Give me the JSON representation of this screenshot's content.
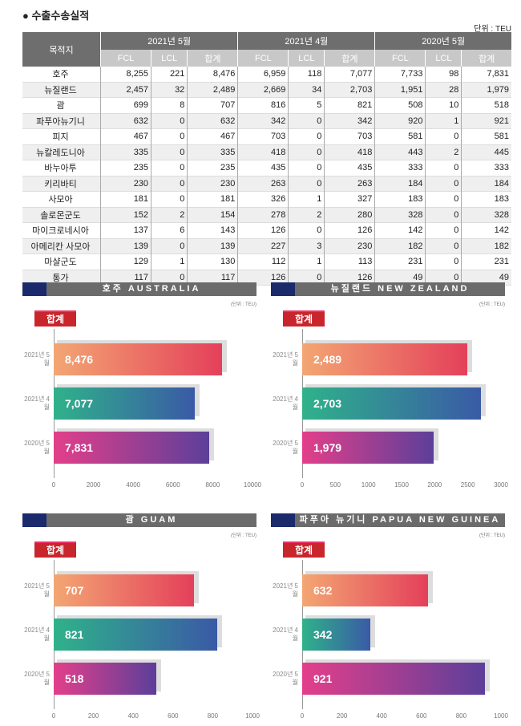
{
  "title": "● 수출수송실적",
  "unit": "단위 : TEU",
  "table": {
    "dest_header": "목적지",
    "periods": [
      "2021년 5월",
      "2021년 4월",
      "2020년 5월"
    ],
    "sub": [
      "FCL",
      "LCL",
      "합계"
    ],
    "rows": [
      [
        "호주",
        "8,255",
        "221",
        "8,476",
        "6,959",
        "118",
        "7,077",
        "7,733",
        "98",
        "7,831"
      ],
      [
        "뉴질랜드",
        "2,457",
        "32",
        "2,489",
        "2,669",
        "34",
        "2,703",
        "1,951",
        "28",
        "1,979"
      ],
      [
        "괌",
        "699",
        "8",
        "707",
        "816",
        "5",
        "821",
        "508",
        "10",
        "518"
      ],
      [
        "파푸아뉴기니",
        "632",
        "0",
        "632",
        "342",
        "0",
        "342",
        "920",
        "1",
        "921"
      ],
      [
        "피지",
        "467",
        "0",
        "467",
        "703",
        "0",
        "703",
        "581",
        "0",
        "581"
      ],
      [
        "뉴칼레도니아",
        "335",
        "0",
        "335",
        "418",
        "0",
        "418",
        "443",
        "2",
        "445"
      ],
      [
        "바누아투",
        "235",
        "0",
        "235",
        "435",
        "0",
        "435",
        "333",
        "0",
        "333"
      ],
      [
        "키리바티",
        "230",
        "0",
        "230",
        "263",
        "0",
        "263",
        "184",
        "0",
        "184"
      ],
      [
        "사모아",
        "181",
        "0",
        "181",
        "326",
        "1",
        "327",
        "183",
        "0",
        "183"
      ],
      [
        "솔로몬군도",
        "152",
        "2",
        "154",
        "278",
        "2",
        "280",
        "328",
        "0",
        "328"
      ],
      [
        "마이크로네시아",
        "137",
        "6",
        "143",
        "126",
        "0",
        "126",
        "142",
        "0",
        "142"
      ],
      [
        "아메리칸 사모아",
        "139",
        "0",
        "139",
        "227",
        "3",
        "230",
        "182",
        "0",
        "182"
      ],
      [
        "마샬군도",
        "129",
        "1",
        "130",
        "112",
        "1",
        "113",
        "231",
        "0",
        "231"
      ],
      [
        "통가",
        "117",
        "0",
        "117",
        "126",
        "0",
        "126",
        "49",
        "0",
        "49"
      ]
    ]
  },
  "chart_data": [
    {
      "type": "bar",
      "title": "호주 AUSTRALIA",
      "unit": "(단위 : TEU)",
      "tag": "합계",
      "categories": [
        "2021년 5월",
        "2021년 4월",
        "2020년 5월"
      ],
      "values": [
        8476,
        7077,
        7831
      ],
      "labels": [
        "8,476",
        "7,077",
        "7,831"
      ],
      "xlim": [
        0,
        10000
      ],
      "ticks": [
        "0",
        "2000",
        "4000",
        "6000",
        "8000",
        "10000"
      ]
    },
    {
      "type": "bar",
      "title": "뉴질랜드 NEW ZEALAND",
      "unit": "(단위 : TEU)",
      "tag": "합계",
      "categories": [
        "2021년 5월",
        "2021년 4월",
        "2020년 5월"
      ],
      "values": [
        2489,
        2703,
        1979
      ],
      "labels": [
        "2,489",
        "2,703",
        "1,979"
      ],
      "xlim": [
        0,
        3000
      ],
      "ticks": [
        "0",
        "500",
        "1000",
        "1500",
        "2000",
        "2500",
        "3000"
      ]
    },
    {
      "type": "bar",
      "title": "괌 GUAM",
      "unit": "(단위 : TEU)",
      "tag": "합계",
      "categories": [
        "2021년 5월",
        "2021년 4월",
        "2020년 5월"
      ],
      "values": [
        707,
        821,
        518
      ],
      "labels": [
        "707",
        "821",
        "518"
      ],
      "xlim": [
        0,
        1000
      ],
      "ticks": [
        "0",
        "200",
        "400",
        "600",
        "800",
        "1000"
      ]
    },
    {
      "type": "bar",
      "title": "파푸아 뉴기니 PAPUA NEW GUINEA",
      "unit": "(단위 : TEU)",
      "tag": "합계",
      "categories": [
        "2021년 5월",
        "2021년 4월",
        "2020년 5월"
      ],
      "values": [
        632,
        342,
        921
      ],
      "labels": [
        "632",
        "342",
        "921"
      ],
      "xlim": [
        0,
        1000
      ],
      "ticks": [
        "0",
        "200",
        "400",
        "600",
        "800",
        "1000"
      ]
    }
  ],
  "colors": {
    "g1": [
      "#f3a673",
      "#e4405a"
    ],
    "g2": [
      "#2fb28a",
      "#3a5aa6"
    ],
    "g3": [
      "#e33f8a",
      "#5c3f9a"
    ]
  }
}
